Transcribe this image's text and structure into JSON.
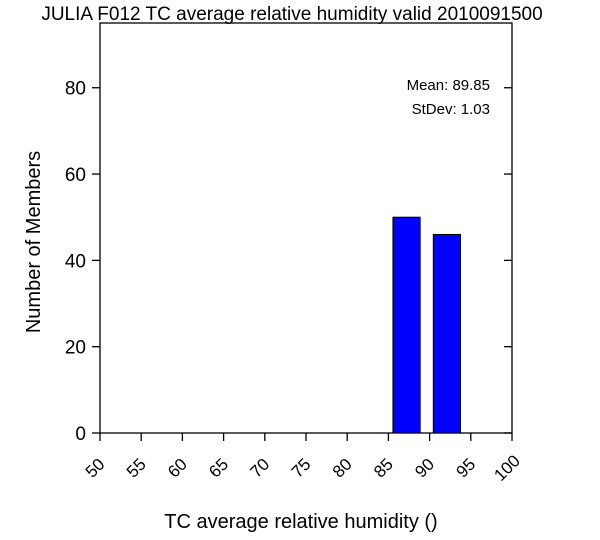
{
  "chart_data": {
    "type": "bar",
    "title": "JULIA F012 TC average relative humidity valid 2010091500",
    "xlabel": "TC average relative humidity ()",
    "ylabel": "Number of Members",
    "xlim": [
      50,
      100
    ],
    "ylim": [
      0,
      95
    ],
    "x_ticks": [
      50,
      55,
      60,
      65,
      70,
      75,
      80,
      85,
      90,
      95,
      100
    ],
    "y_ticks": [
      0,
      20,
      40,
      60,
      80
    ],
    "bar_width": 3.3,
    "bars": [
      {
        "x": 87.2,
        "value": 50
      },
      {
        "x": 92.1,
        "value": 46
      }
    ],
    "bar_color": "#0000ff",
    "grid": false,
    "stats": {
      "mean_label": "Mean: 89.85",
      "stdev_label": "StDev: 1.03"
    }
  }
}
